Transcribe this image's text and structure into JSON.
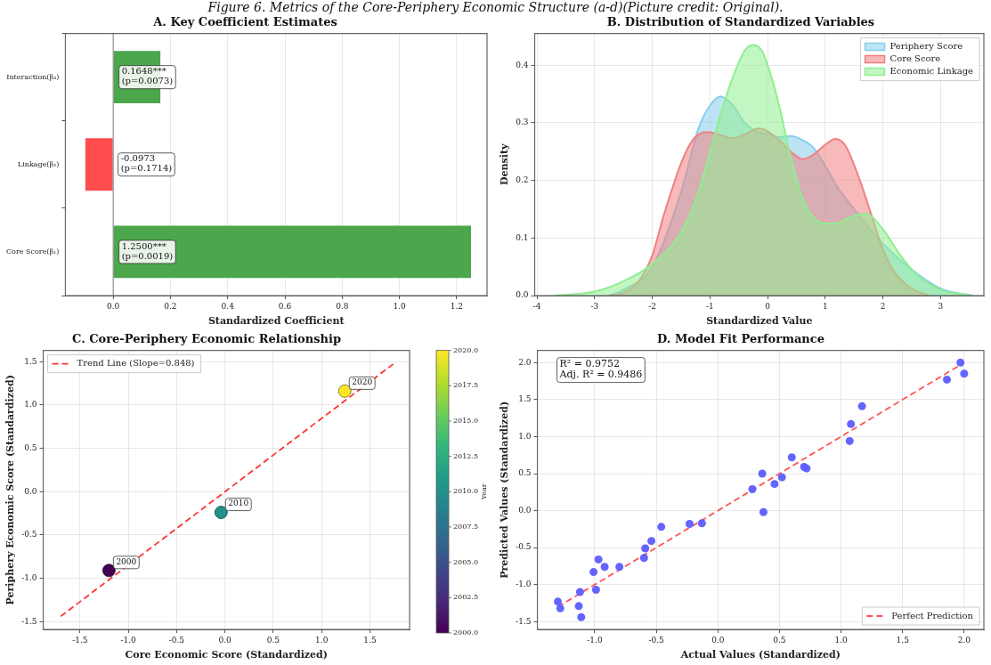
{
  "chart_data": [
    {
      "type": "bar",
      "orientation": "horizontal",
      "title": "A. Key Coefficient Estimates",
      "xlabel": "Standardized Coefficient",
      "categories": [
        "Interaction(β₃)",
        "Linkage(β₂)",
        "Core Score(β₁)"
      ],
      "values": [
        0.1648,
        -0.0973,
        1.25
      ],
      "colors": [
        "#4ca64c",
        "#ff4c4c",
        "#4ca64c"
      ],
      "value_labels": [
        "0.1648***\n(p=0.0073)",
        "-0.0973\n(p=0.1714)",
        "1.2500***\n(p=0.0019)"
      ],
      "xlim": [
        -0.167,
        1.306
      ],
      "xticks": [
        {
          "value": 0,
          "label": "0.0"
        },
        0.2,
        0.4,
        0.6,
        0.8,
        {
          "value": 1,
          "label": "1.0"
        },
        1.2
      ],
      "grid": "x",
      "ref_lines": [
        {
          "axis": "x",
          "value": 0,
          "color": "#808080"
        }
      ],
      "annotations": [
        "Figure 6. Metrics of the Core-Periphery Economic Structure (a-d)(Picture credit: Original)."
      ]
    },
    {
      "type": "area",
      "title": "B. Distribution of Standardized Variables",
      "xlabel": "Standardized Value",
      "ylabel": "Density",
      "series": [
        {
          "name": "Periphery Score",
          "color": "#87ceeb",
          "x": [
            -2.75,
            -2.5,
            -2.0,
            -1.5,
            -1.2,
            -1.0,
            -0.82,
            -0.6,
            -0.4,
            -0.2,
            0,
            0.2,
            0.4,
            0.6,
            0.8,
            1.0,
            1.2,
            1.5,
            2.0,
            2.5,
            3.0,
            3.55
          ],
          "values": [
            0,
            0.01,
            0.05,
            0.18,
            0.29,
            0.33,
            0.346,
            0.33,
            0.3,
            0.285,
            0.28,
            0.275,
            0.277,
            0.27,
            0.256,
            0.225,
            0.19,
            0.15,
            0.09,
            0.045,
            0.012,
            0
          ]
        },
        {
          "name": "Core Score",
          "color": "#f08080",
          "x": [
            -2.75,
            -2.5,
            -2.2,
            -2.0,
            -1.8,
            -1.5,
            -1.3,
            -1.05,
            -0.8,
            -0.6,
            -0.4,
            -0.15,
            0,
            0.2,
            0.4,
            0.6,
            0.8,
            1.0,
            1.17,
            1.35,
            1.6,
            1.8,
            2.0,
            2.2,
            2.5,
            2.8
          ],
          "values": [
            0,
            0.005,
            0.03,
            0.07,
            0.14,
            0.23,
            0.27,
            0.284,
            0.278,
            0.273,
            0.28,
            0.29,
            0.285,
            0.27,
            0.25,
            0.237,
            0.245,
            0.262,
            0.272,
            0.26,
            0.2,
            0.14,
            0.08,
            0.04,
            0.012,
            0
          ]
        },
        {
          "name": "Economic Linkage",
          "color": "#90ee90",
          "x": [
            -3.7,
            -3.0,
            -2.5,
            -2.0,
            -1.5,
            -1.2,
            -1.0,
            -0.8,
            -0.6,
            -0.4,
            -0.25,
            -0.1,
            0,
            0.2,
            0.4,
            0.6,
            0.8,
            1.0,
            1.2,
            1.4,
            1.7,
            2.0,
            2.3,
            2.6,
            3.0,
            3.5
          ],
          "values": [
            0,
            0.007,
            0.025,
            0.055,
            0.11,
            0.18,
            0.25,
            0.32,
            0.38,
            0.425,
            0.435,
            0.425,
            0.4,
            0.33,
            0.24,
            0.17,
            0.135,
            0.125,
            0.125,
            0.135,
            0.142,
            0.115,
            0.07,
            0.035,
            0.01,
            0
          ]
        }
      ],
      "xlim": [
        -4.04,
        3.75
      ],
      "xticks": [
        -4,
        -3,
        -2,
        -1,
        0,
        1,
        2,
        3
      ],
      "ylim": [
        0,
        0.455
      ],
      "yticks": [
        {
          "value": 0,
          "label": "0.0"
        },
        0.1,
        0.2,
        0.3,
        0.4
      ],
      "grid": true,
      "legend": "top right"
    },
    {
      "type": "scatter",
      "title": "C. Core-Periphery Economic Relationship",
      "xlabel": "Core Economic Score (Standardized)",
      "ylabel": "Periphery Economic Score (Standardized)",
      "clabel": "Year",
      "series": [
        {
          "type": "scatter",
          "marker": "circle",
          "x": [
            -1.2,
            -0.04,
            1.24
          ],
          "values": [
            -0.91,
            -0.24,
            1.16
          ],
          "cvalues": [
            2000,
            2010,
            2020
          ],
          "colors": [
            "#440154",
            "#23908b",
            "#fde725"
          ]
        },
        {
          "type": "line",
          "name": "Trend Line (Slope=0.848)",
          "color": "#ff3333",
          "x": [
            -1.7,
            1.75
          ],
          "values": [
            -1.44,
            1.48
          ],
          "line_style": "dashed"
        }
      ],
      "annotations": [
        {
          "text": "2000",
          "x": -1.2,
          "y": -0.91
        },
        {
          "text": "2010",
          "x": -0.04,
          "y": -0.24
        },
        {
          "text": "2020",
          "x": 1.24,
          "y": 1.16
        }
      ],
      "xlim": [
        -1.88,
        1.91
      ],
      "xticks": [
        -1.5,
        {
          "value": -1,
          "label": "-1.0"
        },
        -0.5,
        {
          "value": 0,
          "label": "0.0"
        },
        0.5,
        {
          "value": 1,
          "label": "1.0"
        },
        1.5
      ],
      "ylim": [
        -1.59,
        1.63
      ],
      "yticks": [
        -1.5,
        {
          "value": -1,
          "label": "-1.0"
        },
        -0.5,
        {
          "value": 0,
          "label": "0.0"
        },
        0.5,
        {
          "value": 1,
          "label": "1.0"
        },
        1.5
      ],
      "clim": [
        2000,
        2020
      ],
      "cticks": [
        {
          "value": 2000,
          "label": "2000.0"
        },
        2002.5,
        {
          "value": 2005,
          "label": "2005.0"
        },
        2007.5,
        {
          "value": 2010,
          "label": "2010.0"
        },
        2012.5,
        {
          "value": 2015,
          "label": "2015.0"
        },
        2017.5,
        {
          "value": 2020,
          "label": "2020.0"
        }
      ],
      "grid": true,
      "legend": "top left"
    },
    {
      "type": "scatter",
      "title": "D. Model Fit Performance",
      "xlabel": "Actual Values (Standardized)",
      "ylabel": "Predicted Values (Standardized)",
      "series": [
        {
          "type": "scatter",
          "marker": "circle",
          "color": "#5c5cff",
          "x": [
            -1.3,
            -1.28,
            -1.13,
            -1.12,
            -1.11,
            -1.01,
            -0.99,
            -0.97,
            -0.92,
            -0.8,
            -0.6,
            -0.59,
            -0.54,
            -0.46,
            -0.23,
            -0.13,
            0.28,
            0.36,
            0.37,
            0.46,
            0.52,
            0.6,
            0.7,
            0.72,
            1.07,
            1.08,
            1.17,
            1.86,
            1.97,
            2.0
          ],
          "values": [
            -1.23,
            -1.32,
            -1.29,
            -1.1,
            -1.44,
            -0.83,
            -1.07,
            -0.66,
            -0.76,
            -0.76,
            -0.64,
            -0.51,
            -0.41,
            -0.22,
            -0.18,
            -0.17,
            0.29,
            0.5,
            -0.02,
            0.36,
            0.45,
            0.72,
            0.59,
            0.57,
            0.94,
            1.17,
            1.41,
            1.77,
            2.0,
            1.85
          ]
        },
        {
          "type": "line",
          "name": "Perfect Prediction",
          "color": "#ff5555",
          "x": [
            -1.3,
            1.98
          ],
          "values": [
            -1.3,
            1.98
          ],
          "line_style": "dashed"
        }
      ],
      "annotations": [
        "R² = 0.9752",
        "Adj. R² = 0.9486"
      ],
      "xlim": [
        -1.466,
        2.16
      ],
      "xticks": [
        {
          "value": -1,
          "label": "-1.0"
        },
        -0.5,
        {
          "value": 0,
          "label": "0.0"
        },
        0.5,
        {
          "value": 1,
          "label": "1.0"
        },
        1.5,
        {
          "value": 2,
          "label": "2.0"
        }
      ],
      "ylim": [
        -1.605,
        2.165
      ],
      "yticks": [
        -1.5,
        {
          "value": -1,
          "label": "-1.0"
        },
        -0.5,
        {
          "value": 0,
          "label": "0.0"
        },
        0.5,
        {
          "value": 1,
          "label": "1.0"
        },
        1.5,
        {
          "value": 2,
          "label": "2.0"
        }
      ],
      "grid": true,
      "legend": "bottom right"
    }
  ]
}
